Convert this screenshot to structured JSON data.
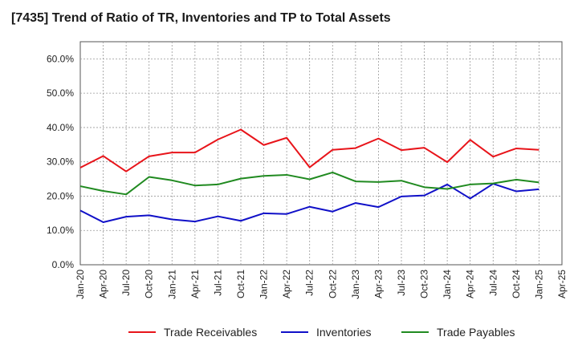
{
  "chart_data": {
    "type": "line",
    "title": "[7435]  Trend of Ratio of TR, Inventories and TP to Total Assets",
    "xlabel": "",
    "ylabel": "",
    "x": [
      "Jan-20",
      "Apr-20",
      "Jul-20",
      "Oct-20",
      "Jan-21",
      "Apr-21",
      "Jul-21",
      "Oct-21",
      "Jan-22",
      "Apr-22",
      "Jul-22",
      "Oct-22",
      "Jan-23",
      "Apr-23",
      "Jul-23",
      "Oct-23",
      "Jan-24",
      "Apr-24",
      "Jul-24",
      "Oct-24",
      "Jan-25"
    ],
    "x_tick_labels": [
      "Jan-20",
      "Apr-20",
      "Jul-20",
      "Oct-20",
      "Jan-21",
      "Apr-21",
      "Jul-21",
      "Oct-21",
      "Jan-22",
      "Apr-22",
      "Jul-22",
      "Oct-22",
      "Jan-23",
      "Apr-23",
      "Jul-23",
      "Oct-23",
      "Jan-24",
      "Apr-24",
      "Jul-24",
      "Oct-24",
      "Jan-25",
      "Apr-25"
    ],
    "y_ticks": [
      "0.0%",
      "10.0%",
      "20.0%",
      "30.0%",
      "40.0%",
      "50.0%",
      "60.0%"
    ],
    "ylim": [
      0,
      65
    ],
    "grid": true,
    "legend_position": "bottom",
    "series": [
      {
        "name": "Trade Receivables",
        "color": "#e8141a",
        "values": [
          28.3,
          31.7,
          27.2,
          31.6,
          32.7,
          32.7,
          36.5,
          39.4,
          34.9,
          37.0,
          28.4,
          33.5,
          34.0,
          36.8,
          33.4,
          34.1,
          29.9,
          36.4,
          31.5,
          33.9,
          33.5
        ]
      },
      {
        "name": "Inventories",
        "color": "#1010c8",
        "values": [
          15.8,
          12.4,
          14.0,
          14.4,
          13.2,
          12.6,
          14.1,
          12.8,
          15.0,
          14.8,
          16.9,
          15.5,
          18.0,
          16.8,
          19.9,
          20.2,
          23.4,
          19.3,
          23.6,
          21.4,
          22.0
        ]
      },
      {
        "name": "Trade Payables",
        "color": "#208a20",
        "values": [
          22.9,
          21.5,
          20.5,
          25.6,
          24.6,
          23.1,
          23.4,
          25.1,
          25.9,
          26.2,
          24.9,
          26.9,
          24.3,
          24.1,
          24.5,
          22.6,
          22.1,
          23.4,
          23.7,
          24.8,
          24.0
        ]
      }
    ]
  }
}
